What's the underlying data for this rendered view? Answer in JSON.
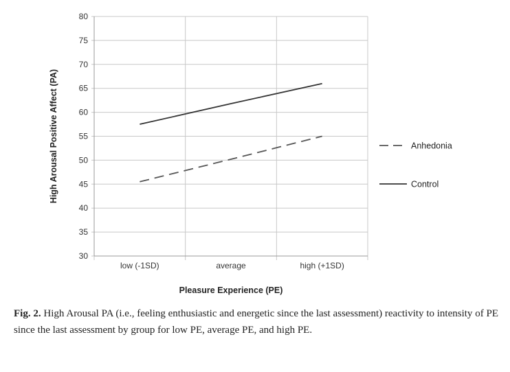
{
  "chart_data": {
    "type": "line",
    "title": "",
    "xlabel": "Pleasure Experience (PE)",
    "ylabel": "High Arousal Positive Affect (PA)",
    "categories": [
      "low (-1SD)",
      "average",
      "high (+1SD)"
    ],
    "yticks": [
      "30",
      "35",
      "40",
      "45",
      "50",
      "55",
      "60",
      "65",
      "70",
      "75",
      "80"
    ],
    "ylim": [
      30,
      80
    ],
    "grid": true,
    "legend_position": "right",
    "series": [
      {
        "name": "Anhedonia",
        "style": "dashed",
        "color": "#555555",
        "values": [
          45.5,
          50.2,
          55
        ]
      },
      {
        "name": "Control",
        "style": "solid",
        "color": "#333333",
        "values": [
          57.5,
          61.8,
          66
        ]
      }
    ]
  },
  "caption": {
    "label": "Fig. 2.",
    "text": "High Arousal PA (i.e., feeling enthusiastic and energetic since the last assessment) reactivity to intensity of PE since the last assessment by group for low PE, average PE, and high PE."
  }
}
